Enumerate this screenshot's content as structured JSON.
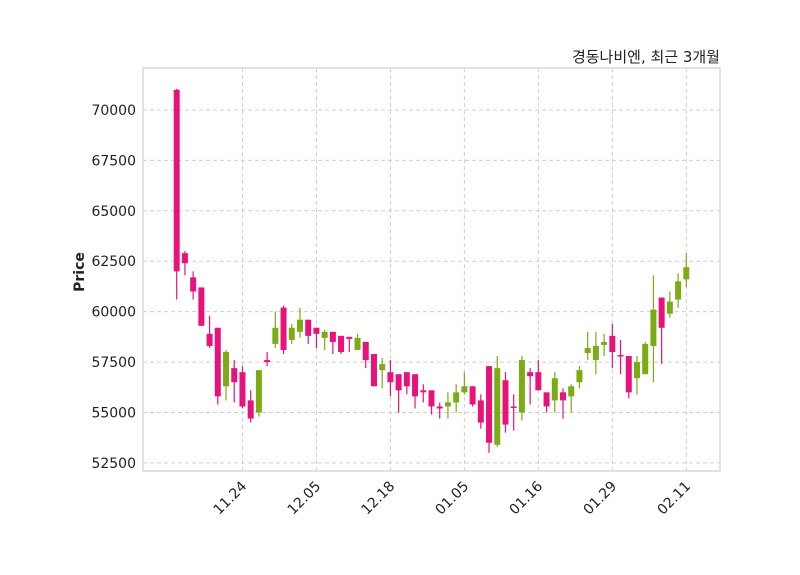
{
  "chart_data": {
    "type": "candlestick",
    "title": "경동나비엔, 최근 3개월",
    "xlabel": "",
    "ylabel": "Price",
    "ylim": [
      52100,
      72080
    ],
    "xlim": [
      -4.1,
      66.1
    ],
    "grid": true,
    "yticks": [
      52500,
      55000,
      57500,
      60000,
      62500,
      65000,
      67500,
      70000
    ],
    "xticks": [
      {
        "index": 8,
        "label": "11.24"
      },
      {
        "index": 17,
        "label": "12.05"
      },
      {
        "index": 26,
        "label": "12.18"
      },
      {
        "index": 35,
        "label": "01.05"
      },
      {
        "index": 44,
        "label": "01.16"
      },
      {
        "index": 53,
        "label": "01.29"
      },
      {
        "index": 62,
        "label": "02.11"
      }
    ],
    "colors": {
      "up": "#7cac14",
      "down": "#e8137a"
    },
    "ohlc": [
      [
        71000,
        71050,
        60600,
        62000
      ],
      [
        62900,
        63000,
        61800,
        62400
      ],
      [
        61700,
        62000,
        60600,
        61000
      ],
      [
        61200,
        61200,
        59300,
        59300
      ],
      [
        58900,
        59800,
        58200,
        58300
      ],
      [
        59200,
        59200,
        55400,
        55800
      ],
      [
        56300,
        58100,
        55600,
        58000
      ],
      [
        57200,
        57600,
        55500,
        56500
      ],
      [
        57000,
        57300,
        55200,
        55300
      ],
      [
        55600,
        56100,
        54500,
        54700
      ],
      [
        55000,
        57100,
        54800,
        57100
      ],
      [
        57600,
        58000,
        57300,
        57500
      ],
      [
        58400,
        60000,
        58200,
        59200
      ],
      [
        60200,
        60300,
        57900,
        58100
      ],
      [
        58600,
        59400,
        58400,
        59200
      ],
      [
        59000,
        60200,
        58700,
        59600
      ],
      [
        59600,
        59600,
        58400,
        58800
      ],
      [
        59200,
        59200,
        58200,
        58900
      ],
      [
        58700,
        59100,
        58100,
        59000
      ],
      [
        59000,
        59000,
        57900,
        58500
      ],
      [
        58800,
        58800,
        57900,
        58000
      ],
      [
        58750,
        58750,
        58000,
        58650
      ],
      [
        58100,
        58900,
        58100,
        58700
      ],
      [
        58500,
        58500,
        57200,
        57600
      ],
      [
        57900,
        57900,
        56300,
        56300
      ],
      [
        57100,
        57700,
        56200,
        57400
      ],
      [
        57000,
        57600,
        55800,
        56500
      ],
      [
        56900,
        56900,
        55000,
        56100
      ],
      [
        57000,
        57000,
        55900,
        56300
      ],
      [
        56900,
        56900,
        55200,
        55800
      ],
      [
        56100,
        56400,
        55500,
        56000
      ],
      [
        56100,
        56100,
        54900,
        55300
      ],
      [
        55300,
        55500,
        54700,
        55200
      ],
      [
        55300,
        56000,
        54700,
        55500
      ],
      [
        55500,
        56400,
        55000,
        56000
      ],
      [
        56000,
        57000,
        55900,
        56300
      ],
      [
        56300,
        56300,
        55300,
        55400
      ],
      [
        55600,
        55900,
        54200,
        54500
      ],
      [
        57300,
        57300,
        53000,
        53500
      ],
      [
        53400,
        57800,
        53300,
        57200
      ],
      [
        56600,
        57000,
        54000,
        54400
      ],
      [
        55300,
        55900,
        54100,
        55250
      ],
      [
        55000,
        57800,
        54600,
        57600
      ],
      [
        57000,
        57200,
        55400,
        56800
      ],
      [
        57000,
        57600,
        56100,
        56100
      ],
      [
        56000,
        56000,
        55000,
        55300
      ],
      [
        55600,
        57000,
        55000,
        56700
      ],
      [
        56000,
        56200,
        54700,
        55600
      ],
      [
        55800,
        56400,
        55000,
        56300
      ],
      [
        56500,
        57300,
        56200,
        57100
      ],
      [
        57950,
        59000,
        57600,
        58200
      ],
      [
        57600,
        59000,
        56900,
        58300
      ],
      [
        58350,
        58900,
        57800,
        58500
      ],
      [
        58800,
        59400,
        57200,
        58000
      ],
      [
        57850,
        58600,
        56900,
        57800
      ],
      [
        57800,
        57800,
        55700,
        56000
      ],
      [
        56700,
        57800,
        55900,
        57500
      ],
      [
        56900,
        58500,
        56900,
        58400
      ],
      [
        58300,
        61800,
        56500,
        60100
      ],
      [
        60700,
        60700,
        57400,
        59200
      ],
      [
        59900,
        61000,
        59700,
        60500
      ],
      [
        60600,
        61900,
        60200,
        61500
      ],
      [
        61600,
        62900,
        61200,
        62200
      ]
    ]
  }
}
